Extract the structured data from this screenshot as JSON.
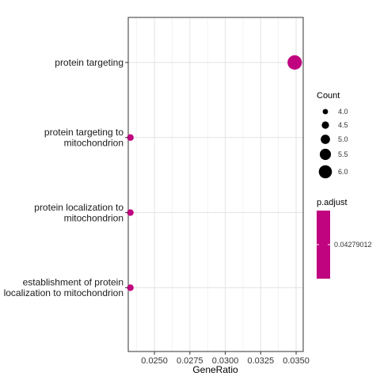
{
  "chart_data": {
    "type": "scatter",
    "xlabel": "GeneRatio",
    "xlim": [
      0.02315,
      0.0355
    ],
    "x_ticks": [
      "0.0250",
      "0.0275",
      "0.0300",
      "0.0325",
      "0.0350"
    ],
    "x_tick_values": [
      0.025,
      0.0275,
      0.03,
      0.0325,
      0.035
    ],
    "categories": [
      "protein targeting",
      "protein targeting to mitochondrion",
      "protein localization to mitochondrion",
      "establishment of protein localization to mitochondrion"
    ],
    "category_lines": [
      [
        "protein targeting"
      ],
      [
        "protein targeting to",
        "mitochondrion"
      ],
      [
        "protein localization to",
        "mitochondrion"
      ],
      [
        "establishment of protein",
        "localization to mitochondrion"
      ]
    ],
    "points": [
      {
        "category": "protein targeting",
        "x": 0.0349,
        "count": 6,
        "p_adjust": 0.04279012
      },
      {
        "category": "protein targeting to mitochondrion",
        "x": 0.0233,
        "count": 4,
        "p_adjust": 0.04279012
      },
      {
        "category": "protein localization to mitochondrion",
        "x": 0.0233,
        "count": 4,
        "p_adjust": 0.04279012
      },
      {
        "category": "establishment of protein localization to mitochondrion",
        "x": 0.0233,
        "count": 4,
        "p_adjust": 0.04279012
      }
    ],
    "point_color": "#c0047f",
    "grid": true,
    "legend_placement": "right",
    "size_legend": {
      "title": "Count",
      "labels": [
        "4.0",
        "4.5",
        "5.0",
        "5.5",
        "6.0"
      ],
      "values": [
        4.0,
        4.5,
        5.0,
        5.5,
        6.0
      ]
    },
    "color_legend": {
      "title": "p.adjust",
      "labels": [
        "0.04279012"
      ],
      "color": "#c0047f"
    }
  }
}
